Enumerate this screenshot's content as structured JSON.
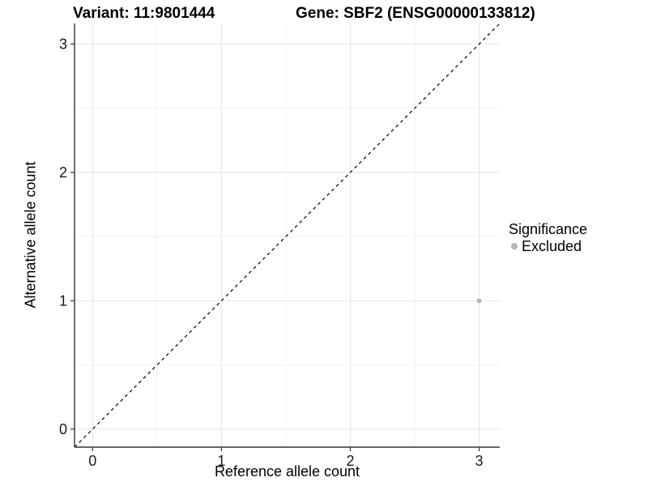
{
  "titles": {
    "variant": "Variant: 11:9801444",
    "gene": "Gene: SBF2 (ENSG00000133812)"
  },
  "chart_data": {
    "type": "scatter",
    "title_left": "Variant: 11:9801444",
    "title_right": "Gene: SBF2 (ENSG00000133812)",
    "xlabel": "Reference allele count",
    "ylabel": "Alternative allele count",
    "xlim": [
      -0.14,
      3.16
    ],
    "ylim": [
      -0.14,
      3.16
    ],
    "xticks": [
      0,
      1,
      2,
      3
    ],
    "yticks": [
      0,
      1,
      2,
      3
    ],
    "minor_ticks": [
      0.5,
      1.5,
      2.5
    ],
    "grid": true,
    "identity_line": {
      "from": [
        -0.14,
        -0.14
      ],
      "to": [
        3.16,
        3.16
      ],
      "style": "dashed",
      "color": "#000000"
    },
    "series": [
      {
        "name": "Excluded",
        "color": "#b5b5b5",
        "points": [
          {
            "x": 3,
            "y": 1
          }
        ]
      }
    ],
    "legend": {
      "position": "right",
      "title": "Significance",
      "entries": [
        {
          "label": "Excluded",
          "color": "#b5b5b5"
        }
      ]
    }
  },
  "colors": {
    "background": "#ffffff",
    "grid_major": "#e4e4e4",
    "grid_minor": "#f2f2f2",
    "axis_line": "#333333",
    "tick_mark": "#333333",
    "tick_label": "#1a1a1a",
    "identity_line": "#000000",
    "point": "#b5b5b5",
    "text": "#000000"
  }
}
